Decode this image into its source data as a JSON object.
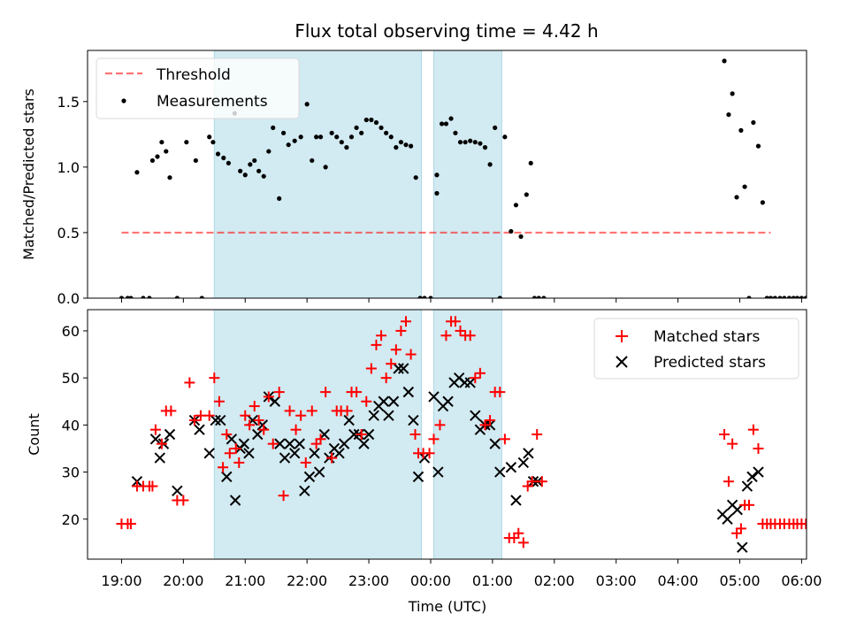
{
  "title": "Flux total observing time = 4.42 h",
  "colors": {
    "threshold": "#ff0000",
    "span": "#add8e6",
    "matched": "#ff0000",
    "predicted": "#000000",
    "measurement": "#000000"
  },
  "chart_data": [
    {
      "type": "scatter",
      "panel": "top",
      "ylabel": "Matched/Predicted stars",
      "xlim": [
        18.45,
        30.08
      ],
      "ylim": [
        0,
        1.89
      ],
      "yticks": [
        0.0,
        0.5,
        1.0,
        1.5
      ],
      "ytick_labels": [
        "0.0",
        "0.5",
        "1.0",
        "1.5"
      ],
      "legend": {
        "position": "top-left",
        "labels": [
          "Threshold",
          "Measurements"
        ]
      },
      "threshold": {
        "name": "Threshold",
        "value": 0.5,
        "x_range": [
          19.0,
          29.5
        ]
      },
      "shaded_spans": [
        [
          20.5,
          23.85
        ],
        [
          24.05,
          25.15
        ]
      ],
      "measurements": {
        "name": "Measurements",
        "x": [
          19.0,
          19.1,
          19.15,
          19.25,
          19.35,
          19.45,
          19.5,
          19.58,
          19.65,
          19.72,
          19.78,
          19.9,
          20.05,
          20.2,
          20.3,
          20.42,
          20.48,
          20.56,
          20.65,
          20.73,
          20.83,
          20.92,
          21.0,
          21.08,
          21.15,
          21.22,
          21.3,
          21.38,
          21.45,
          21.55,
          21.62,
          21.7,
          21.8,
          21.9,
          22.0,
          22.08,
          22.15,
          22.22,
          22.3,
          22.4,
          22.48,
          22.56,
          22.64,
          22.72,
          22.8,
          22.88,
          22.96,
          23.04,
          23.12,
          23.2,
          23.28,
          23.36,
          23.44,
          23.52,
          23.6,
          23.68,
          23.76,
          23.83,
          23.9,
          24.0,
          24.1,
          24.1,
          24.18,
          24.25,
          24.33,
          24.4,
          24.48,
          24.56,
          24.64,
          24.72,
          24.8,
          24.88,
          24.96,
          25.04,
          25.12,
          25.2,
          25.3,
          25.38,
          25.46,
          25.55,
          25.62,
          25.68,
          25.75,
          25.83,
          28.75,
          28.82,
          28.88,
          28.95,
          29.02,
          29.08,
          29.15,
          29.22,
          29.3,
          29.37,
          29.44,
          29.5,
          29.57,
          29.65,
          29.72,
          29.8,
          29.87,
          29.93,
          30.0,
          30.07,
          30.13,
          30.2,
          30.25,
          30.3
        ],
        "y": [
          0.0,
          0.0,
          0.0,
          0.96,
          0.0,
          0.0,
          1.05,
          1.08,
          1.19,
          1.12,
          0.92,
          0.0,
          1.19,
          1.05,
          0.0,
          1.23,
          1.19,
          1.1,
          1.07,
          1.03,
          1.41,
          0.97,
          0.94,
          1.02,
          1.05,
          0.97,
          0.93,
          1.12,
          1.3,
          0.76,
          1.26,
          1.17,
          1.2,
          1.23,
          1.48,
          1.05,
          1.23,
          1.23,
          1.0,
          1.26,
          1.23,
          1.19,
          1.15,
          1.23,
          1.3,
          1.26,
          1.36,
          1.36,
          1.34,
          1.3,
          1.26,
          1.23,
          1.15,
          1.19,
          1.17,
          1.16,
          0.92,
          0.0,
          0.0,
          0.0,
          0.8,
          0.94,
          1.33,
          1.33,
          1.37,
          1.26,
          1.19,
          1.19,
          1.2,
          1.19,
          1.18,
          1.15,
          1.02,
          1.3,
          0.0,
          1.23,
          0.51,
          0.71,
          0.47,
          0.79,
          1.03,
          0.0,
          0.0,
          0.0,
          1.81,
          1.4,
          1.56,
          0.77,
          1.28,
          0.85,
          0.0,
          1.34,
          1.16,
          0.73,
          0.0,
          0.0,
          0.0,
          0.0,
          0.0,
          0.0,
          0.0,
          0.0,
          0.0,
          0.0,
          0.0,
          0.0,
          0.0,
          0.0
        ]
      }
    },
    {
      "type": "scatter",
      "panel": "bottom",
      "ylabel": "Count",
      "xlabel": "Time (UTC)",
      "xlim": [
        18.45,
        30.08
      ],
      "ylim": [
        11.5,
        64.5
      ],
      "yticks": [
        20,
        30,
        40,
        50,
        60
      ],
      "ytick_labels": [
        "20",
        "30",
        "40",
        "50",
        "60"
      ],
      "xticks": [
        19,
        20,
        21,
        22,
        23,
        24,
        25,
        26,
        27,
        28,
        29,
        30
      ],
      "xtick_labels": [
        "19:00",
        "20:00",
        "21:00",
        "22:00",
        "23:00",
        "00:00",
        "01:00",
        "02:00",
        "03:00",
        "04:00",
        "05:00",
        "06:00"
      ],
      "legend": {
        "position": "top-right",
        "labels": [
          "Matched stars",
          "Predicted stars"
        ]
      },
      "shaded_spans": [
        [
          20.5,
          23.85
        ],
        [
          24.05,
          25.15
        ]
      ],
      "matched": {
        "name": "Matched stars",
        "x": [
          19.0,
          19.1,
          19.15,
          19.25,
          19.35,
          19.45,
          19.5,
          19.55,
          19.65,
          19.72,
          19.8,
          19.9,
          20.0,
          20.1,
          20.18,
          20.28,
          20.42,
          20.5,
          20.58,
          20.64,
          20.7,
          20.75,
          20.85,
          20.9,
          21.0,
          21.07,
          21.15,
          21.22,
          21.3,
          21.38,
          21.45,
          21.55,
          21.62,
          21.72,
          21.82,
          21.9,
          21.98,
          22.08,
          22.15,
          22.22,
          22.3,
          22.4,
          22.48,
          22.55,
          22.65,
          22.72,
          22.8,
          22.88,
          22.96,
          23.04,
          23.12,
          23.2,
          23.28,
          23.36,
          23.44,
          23.52,
          23.6,
          23.68,
          23.75,
          23.8,
          23.88,
          23.98,
          24.05,
          24.15,
          24.25,
          24.33,
          24.4,
          24.48,
          24.56,
          24.64,
          24.72,
          24.8,
          24.88,
          24.96,
          25.04,
          25.12,
          25.2,
          25.27,
          25.35,
          25.42,
          25.5,
          25.57,
          25.64,
          25.72,
          25.8,
          28.75,
          28.82,
          28.88,
          28.95,
          29.02,
          29.08,
          29.15,
          29.22,
          29.3,
          29.37,
          29.44,
          29.5,
          29.57,
          29.65,
          29.72,
          29.8,
          29.87,
          29.93,
          30.0,
          30.07,
          30.13,
          30.2,
          30.25,
          30.3
        ],
        "y": [
          19,
          19,
          19,
          27,
          27,
          27,
          27,
          39,
          36,
          43,
          43,
          24,
          24,
          49,
          41,
          42,
          42,
          50,
          45,
          31,
          38,
          34,
          35,
          32,
          42,
          40,
          44,
          41,
          39,
          46,
          36,
          47,
          25,
          43,
          39,
          42,
          32,
          43,
          36,
          37,
          47,
          33,
          43,
          43,
          43,
          47,
          47,
          38,
          45,
          52,
          57,
          59,
          50,
          53,
          56,
          60,
          62,
          55,
          38,
          34,
          34,
          34,
          37,
          40,
          59,
          62,
          62,
          60,
          59,
          59,
          50,
          51,
          40,
          41,
          47,
          47,
          37,
          16,
          16,
          17,
          15,
          27,
          28,
          38,
          28,
          38,
          28,
          36,
          17,
          18,
          23,
          23,
          39,
          35,
          19,
          19,
          19,
          19,
          19,
          19,
          19,
          19,
          19,
          19,
          19,
          19,
          19,
          19,
          19
        ],
        "note": "Points beyond x=29.6 fall outside the plotted area and are clipped; the clusters at 25–26 and 28.7–30.3 continue as shown."
      },
      "predicted": {
        "name": "Predicted stars",
        "x": [
          19.25,
          19.55,
          19.62,
          19.68,
          19.78,
          19.9,
          20.18,
          20.26,
          20.42,
          20.52,
          20.6,
          20.7,
          20.78,
          20.84,
          20.92,
          20.98,
          21.06,
          21.12,
          21.2,
          21.28,
          21.38,
          21.48,
          21.56,
          21.64,
          21.72,
          21.8,
          21.88,
          21.96,
          22.04,
          22.12,
          22.2,
          22.28,
          22.36,
          22.44,
          22.52,
          22.6,
          22.68,
          22.76,
          22.84,
          22.92,
          23.0,
          23.08,
          23.16,
          23.24,
          23.32,
          23.4,
          23.48,
          23.56,
          23.64,
          23.72,
          23.8,
          23.9,
          24.05,
          24.12,
          24.2,
          24.28,
          24.38,
          24.46,
          24.55,
          24.64,
          24.72,
          24.8,
          24.88,
          24.96,
          25.04,
          25.12,
          25.3,
          25.38,
          25.5,
          25.58,
          25.66,
          25.73,
          28.72,
          28.8,
          28.88,
          28.96,
          29.04,
          29.12,
          29.2,
          29.3
        ],
        "y": [
          28,
          37,
          33,
          36,
          38,
          26,
          41,
          39,
          34,
          41,
          41,
          29,
          37,
          24,
          35,
          36,
          34,
          41,
          38,
          40,
          46,
          45,
          36,
          33,
          36,
          34,
          36,
          26,
          29,
          34,
          30,
          38,
          33,
          35,
          34,
          36,
          41,
          38,
          38,
          36,
          38,
          42,
          44,
          45,
          42,
          45,
          52,
          52,
          47,
          41,
          29,
          33,
          46,
          30,
          44,
          45,
          49,
          50,
          49,
          49,
          42,
          39,
          40,
          40,
          36,
          30,
          31,
          24,
          32,
          34,
          28,
          28,
          21,
          20,
          23,
          22,
          14,
          27,
          29,
          30
        ]
      }
    }
  ]
}
